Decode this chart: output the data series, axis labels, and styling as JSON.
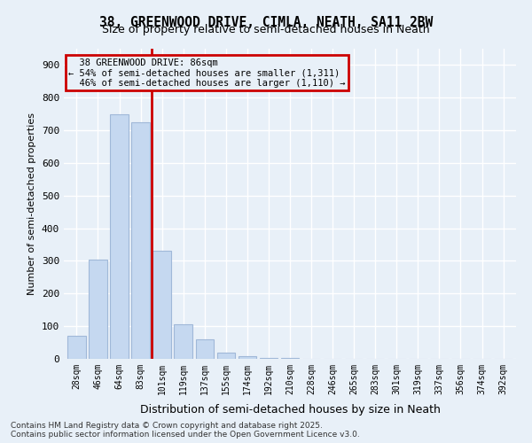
{
  "title1": "38, GREENWOOD DRIVE, CIMLA, NEATH, SA11 2BW",
  "title2": "Size of property relative to semi-detached houses in Neath",
  "xlabel": "Distribution of semi-detached houses by size in Neath",
  "ylabel": "Number of semi-detached properties",
  "categories": [
    "28sqm",
    "46sqm",
    "64sqm",
    "83sqm",
    "101sqm",
    "119sqm",
    "137sqm",
    "155sqm",
    "174sqm",
    "192sqm",
    "210sqm",
    "228sqm",
    "246sqm",
    "265sqm",
    "283sqm",
    "301sqm",
    "319sqm",
    "337sqm",
    "356sqm",
    "374sqm",
    "392sqm"
  ],
  "values": [
    70,
    305,
    750,
    725,
    330,
    105,
    60,
    20,
    8,
    3,
    2,
    1,
    1,
    0,
    0,
    0,
    0,
    0,
    0,
    0,
    0
  ],
  "bar_color": "#c5d8f0",
  "bar_edge_color": "#a0b8d8",
  "highlight_index": 3,
  "highlight_line_color": "#cc0000",
  "annotation_box_color": "#cc0000",
  "property_size": "86sqm",
  "pct_smaller": 54,
  "count_smaller": 1311,
  "pct_larger": 46,
  "count_larger": 1110,
  "ylim": [
    0,
    950
  ],
  "yticks": [
    0,
    100,
    200,
    300,
    400,
    500,
    600,
    700,
    800,
    900
  ],
  "bg_color": "#e8f0f8",
  "footer1": "Contains HM Land Registry data © Crown copyright and database right 2025.",
  "footer2": "Contains public sector information licensed under the Open Government Licence v3.0."
}
